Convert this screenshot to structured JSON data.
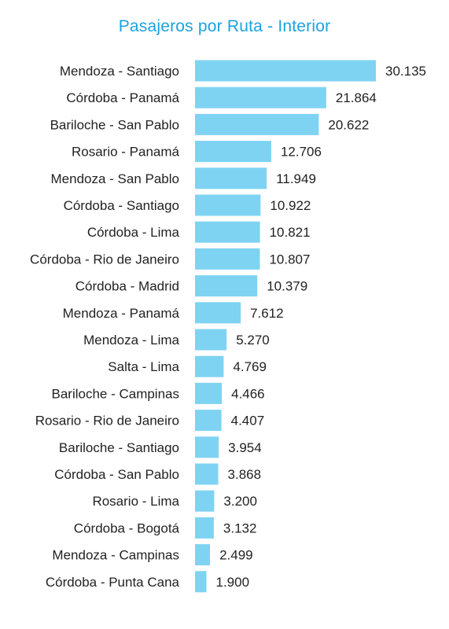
{
  "chart_data": {
    "type": "bar",
    "orientation": "horizontal",
    "title": "Pasajeros por Ruta - Interior",
    "xlabel": "",
    "ylabel": "",
    "grid": false,
    "legend": "none",
    "bar_color": "#7fd3f2",
    "title_color": "#1aa3e0",
    "categories": [
      "Mendoza - Santiago",
      "Córdoba - Panamá",
      "Bariloche - San Pablo",
      "Rosario - Panamá",
      "Mendoza - San Pablo",
      "Córdoba - Santiago",
      "Córdoba - Lima",
      "Córdoba - Rio de Janeiro",
      "Córdoba - Madrid",
      "Mendoza - Panamá",
      "Mendoza - Lima",
      "Salta - Lima",
      "Bariloche - Campinas",
      "Rosario - Rio de Janeiro",
      "Bariloche - Santiago",
      "Córdoba - San Pablo",
      "Rosario - Lima",
      "Córdoba - Bogotá",
      "Mendoza - Campinas",
      "Córdoba - Punta Cana"
    ],
    "values": [
      30135,
      21864,
      20622,
      12706,
      11949,
      10922,
      10821,
      10807,
      10379,
      7612,
      5270,
      4769,
      4466,
      4407,
      3954,
      3868,
      3200,
      3132,
      2499,
      1900
    ],
    "value_labels": [
      "30.135",
      "21.864",
      "20.622",
      "12.706",
      "11.949",
      "10.922",
      "10.821",
      "10.807",
      "10.379",
      "7.612",
      "5.270",
      "4.769",
      "4.466",
      "4.407",
      "3.954",
      "3.868",
      "3.200",
      "3.132",
      "2.499",
      "1.900"
    ]
  }
}
